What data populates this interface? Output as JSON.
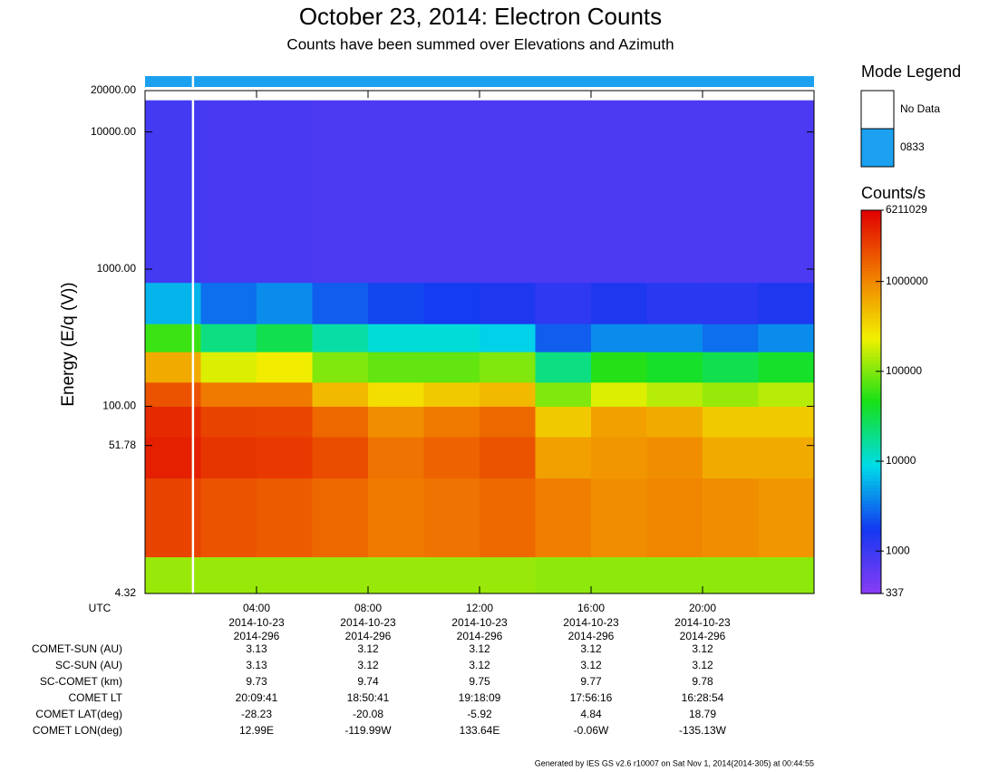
{
  "chart_data": {
    "type": "heatmap",
    "title": "October 23, 2014: Electron Counts",
    "subtitle": "Counts have been summed over Elevations and Azimuth",
    "ylabel": "Energy (E/q (V))",
    "xaxis_label": "UTC",
    "log_y": true,
    "xlim": [
      0,
      24
    ],
    "ylim": [
      4.32,
      20000
    ],
    "yticks": [
      {
        "value": 20000,
        "label": "20000.00"
      },
      {
        "value": 10000,
        "label": "10000.00"
      },
      {
        "value": 1000,
        "label": "1000.00"
      },
      {
        "value": 100,
        "label": "100.00"
      },
      51.78,
      4.32
    ],
    "xticks": [
      {
        "value": 4,
        "label": "04:00"
      },
      {
        "value": 8,
        "label": "08:00"
      },
      {
        "value": 12,
        "label": "12:00"
      },
      {
        "value": 16,
        "label": "16:00"
      },
      {
        "value": 20,
        "label": "20:00"
      }
    ],
    "xtick_dates": [
      "2014-10-23",
      "2014-10-23",
      "2014-10-23",
      "2014-10-23",
      "2014-10-23"
    ],
    "xtick_doy": [
      "2014-296",
      "2014-296",
      "2014-296",
      "2014-296",
      "2014-296"
    ],
    "x_bins": [
      0,
      2,
      4,
      6,
      8,
      10,
      12,
      14,
      16,
      18,
      20,
      22,
      24
    ],
    "energy_bins": [
      4.32,
      8,
      30,
      60,
      100,
      150,
      250,
      400,
      800,
      17000
    ],
    "values": [
      [
        120000,
        120000,
        120000,
        120000,
        120000,
        120000,
        120000,
        110000,
        110000,
        110000,
        110000,
        110000
      ],
      [
        2500000,
        2000000,
        1800000,
        1500000,
        1200000,
        1300000,
        1500000,
        1100000,
        900000,
        1000000,
        900000,
        800000
      ],
      [
        4000000,
        3000000,
        2800000,
        2200000,
        1300000,
        1600000,
        2000000,
        700000,
        800000,
        900000,
        600000,
        600000
      ],
      [
        3500000,
        2500000,
        2400000,
        1500000,
        900000,
        1200000,
        1500000,
        400000,
        700000,
        600000,
        400000,
        400000
      ],
      [
        2000000,
        1200000,
        1200000,
        500000,
        300000,
        400000,
        500000,
        100000,
        200000,
        150000,
        120000,
        150000
      ],
      [
        600000,
        200000,
        250000,
        100000,
        80000,
        80000,
        100000,
        20000,
        50000,
        40000,
        30000,
        40000
      ],
      [
        60000,
        20000,
        30000,
        15000,
        10000,
        10000,
        8000,
        2500,
        4000,
        4000,
        3000,
        4000
      ],
      [
        6000,
        3000,
        4000,
        2500,
        2000,
        1800,
        1500,
        1200,
        1500,
        1300,
        1300,
        1500
      ],
      [
        900,
        850,
        850,
        800,
        800,
        800,
        800,
        800,
        800,
        800,
        800,
        800
      ]
    ],
    "no_data_intervals": [
      [
        1.68,
        1.76
      ]
    ],
    "colorbar_title": "Counts/s",
    "log_color": true,
    "clim": [
      337,
      6211029
    ],
    "cticks": [
      337,
      1000,
      10000,
      100000,
      1000000,
      6211029
    ],
    "colorscale": [
      "#8a3cf5",
      "#1438f0",
      "#00dce8",
      "#18e018",
      "#f2f000",
      "#f07800",
      "#e00000"
    ],
    "mode_legend": {
      "title": "Mode Legend",
      "entries": [
        {
          "name": "No Data",
          "color": "#ffffff"
        },
        {
          "name": "0833",
          "color": "#1ca0f0"
        }
      ]
    },
    "ephemeris": [
      {
        "label": "COMET-SUN (AU)",
        "values": [
          3.13,
          3.12,
          3.12,
          3.12,
          3.12
        ]
      },
      {
        "label": "SC-SUN (AU)",
        "values": [
          3.13,
          3.12,
          3.12,
          3.12,
          3.12
        ]
      },
      {
        "label": "SC-COMET (km)",
        "values": [
          9.73,
          9.74,
          9.75,
          9.77,
          9.78
        ]
      },
      {
        "label": "COMET LT",
        "values": [
          "20:09:41",
          "18:50:41",
          "19:18:09",
          "17:56:16",
          "16:28:54"
        ]
      },
      {
        "label": "COMET LAT(deg)",
        "values": [
          -28.23,
          -20.08,
          -5.92,
          4.84,
          18.79
        ]
      },
      {
        "label": "COMET LON(deg)",
        "values": [
          "12.99E",
          "-119.99W",
          "133.64E",
          "-0.06W",
          "-135.13W"
        ]
      }
    ],
    "footer": "Generated by IES GS v2.6 r10007 on Sat Nov 1, 2014(2014-305) at 00:44:55"
  }
}
